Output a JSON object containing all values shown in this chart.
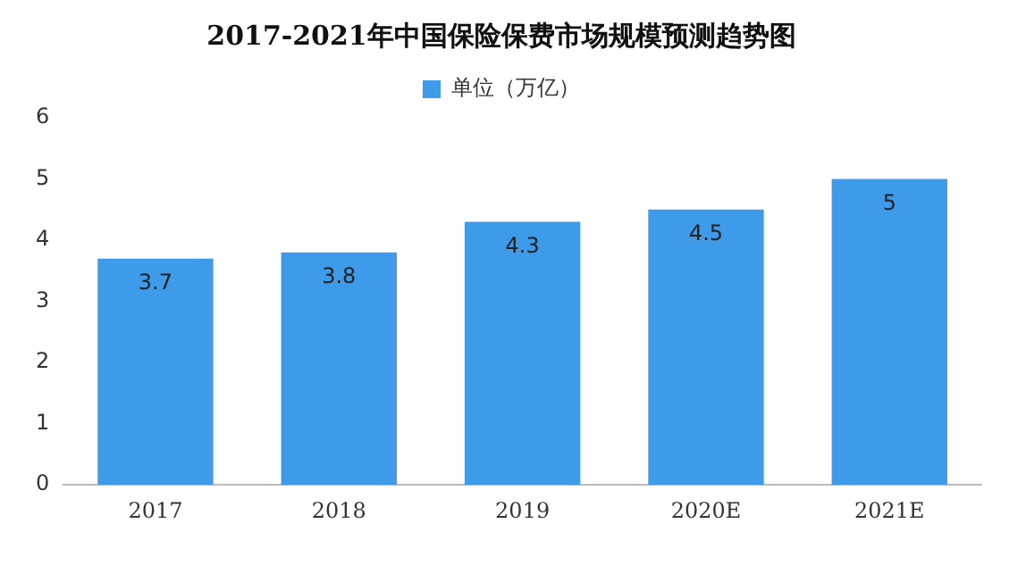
{
  "chart_data": {
    "type": "bar",
    "title": "2017-2021年中国保险保费市场规模预测趋势图",
    "categories": [
      "2017",
      "2018",
      "2019",
      "2020E",
      "2021E"
    ],
    "series": [
      {
        "name": "单位（万亿）",
        "color": "#3d9be9",
        "values": [
          3.7,
          3.8,
          4.3,
          4.5,
          5
        ]
      }
    ],
    "ylim": [
      0,
      6
    ],
    "yticks": [
      0,
      1,
      2,
      3,
      4,
      5,
      6
    ],
    "grid": false,
    "legend": "top",
    "data_labels": true
  }
}
